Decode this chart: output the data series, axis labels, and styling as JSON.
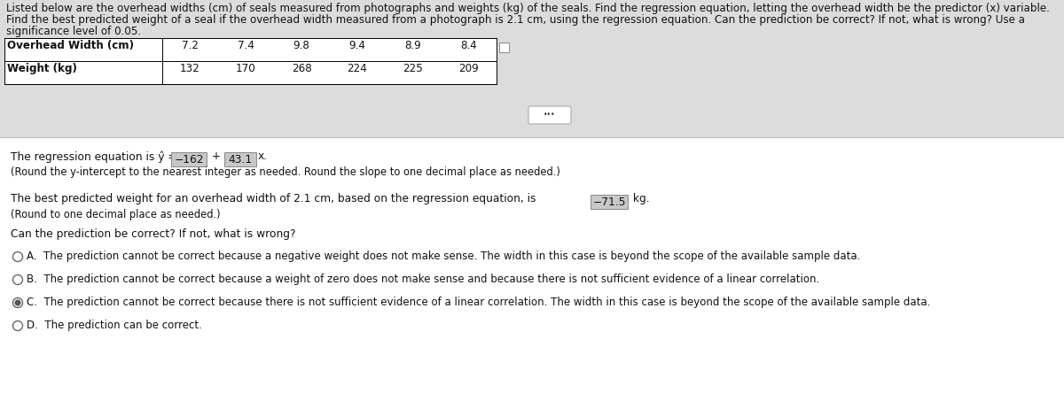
{
  "title_line1": "Listed below are the overhead widths (cm) of seals measured from photographs and weights (kg) of the seals. Find the regression equation, letting the overhead width be the predictor (x) variable.",
  "title_line2": "Find the best predicted weight of a seal if the overhead width measured from a photograph is 2.1 cm, using the regression equation. Can the prediction be correct? If not, what is wrong? Use a",
  "title_line3": "significance level of 0.05.",
  "table_row1_label": "Overhead Width (cm)",
  "table_row2_label": "Weight (kg)",
  "table_data_row1": [
    "7.2",
    "7.4",
    "9.8",
    "9.4",
    "8.9",
    "8.4"
  ],
  "table_data_row2": [
    "132",
    "170",
    "268",
    "224",
    "225",
    "209"
  ],
  "reg_prefix": "The regression equation is ŷ = ",
  "reg_intercept": "−162",
  "reg_middle": " + ",
  "reg_slope": "43.1",
  "reg_suffix": "x.",
  "reg_note": "(Round the y-intercept to the nearest integer as needed. Round the slope to one decimal place as needed.)",
  "pred_prefix": "The best predicted weight for an overhead width of 2.1 cm, based on the regression equation, is ",
  "pred_value": "−71.5",
  "pred_suffix": " kg.",
  "pred_note": "(Round to one decimal place as needed.)",
  "question": "Can the prediction be correct? If not, what is wrong?",
  "option_A": "A.  The prediction cannot be correct because a negative weight does not make sense. The width in this case is beyond the scope of the available sample data.",
  "option_B": "B.  The prediction cannot be correct because a weight of zero does not make sense and because there is not sufficient evidence of a linear correlation.",
  "option_C": "C.  The prediction cannot be correct because there is not sufficient evidence of a linear correlation. The width in this case is beyond the scope of the available sample data.",
  "option_D": "D.  The prediction can be correct.",
  "selected": "C",
  "bg_top": "#dcdcdc",
  "bg_bottom": "#ffffff",
  "text_color": "#111111",
  "box_color": "#c8c8c8",
  "box_edge": "#888888",
  "table_bg": "#ffffff",
  "sep_line_color": "#bbbbbb",
  "radio_edge": "#666666",
  "radio_fill_selected": "#555555"
}
